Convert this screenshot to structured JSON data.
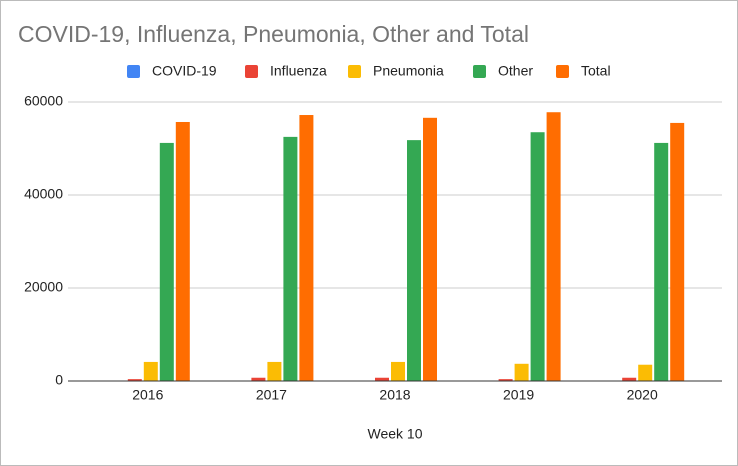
{
  "chart_data": {
    "type": "bar",
    "title": "COVID-19, Influenza, Pneumonia, Other and Total",
    "x_label": "Week 10",
    "categories": [
      "2016",
      "2017",
      "2018",
      "2019",
      "2020"
    ],
    "series": [
      {
        "name": "COVID-19",
        "color": "#4285f4",
        "values": [
          0,
          0,
          0,
          0,
          0
        ]
      },
      {
        "name": "Influenza",
        "color": "#ea4335",
        "values": [
          400,
          700,
          700,
          400,
          700
        ]
      },
      {
        "name": "Pneumonia",
        "color": "#fbbc04",
        "values": [
          4100,
          4100,
          4100,
          3700,
          3500
        ]
      },
      {
        "name": "Other",
        "color": "#34a853",
        "values": [
          51200,
          52500,
          51800,
          53500,
          51200
        ]
      },
      {
        "name": "Total",
        "color": "#ff6d01",
        "values": [
          55700,
          57200,
          56600,
          57800,
          55500
        ]
      }
    ],
    "ylim": [
      0,
      60000
    ],
    "yticks": [
      0,
      20000,
      40000,
      60000
    ],
    "grid": true,
    "legend": "top"
  }
}
